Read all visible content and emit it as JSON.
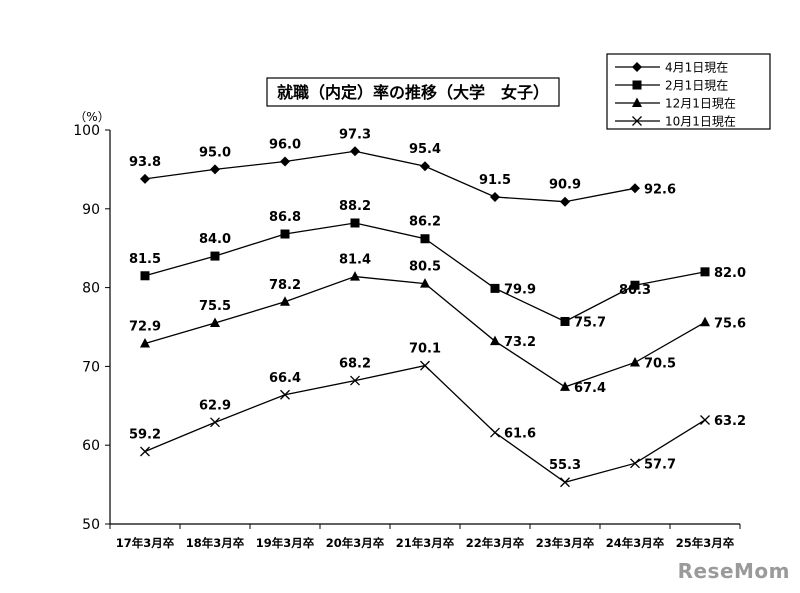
{
  "chart_data": {
    "type": "line",
    "title": "就職（内定）率の推移（大学　女子）",
    "ylabel": "（%）",
    "ylim": [
      50,
      100
    ],
    "yticks": [
      50,
      60,
      70,
      80,
      90,
      100
    ],
    "categories": [
      "17年3月卒",
      "18年3月卒",
      "19年3月卒",
      "20年3月卒",
      "21年3月卒",
      "22年3月卒",
      "23年3月卒",
      "24年3月卒",
      "25年3月卒"
    ],
    "grid": false,
    "legend_position": "top-right",
    "series": [
      {
        "name": "4月1日現在",
        "marker": "diamond",
        "values": [
          93.8,
          95.0,
          96.0,
          97.3,
          95.4,
          91.5,
          90.9,
          92.6,
          null
        ],
        "labels": [
          "93.8",
          "95.0",
          "96.0",
          "97.3",
          "95.4",
          "91.5",
          "90.9",
          "92.6",
          null
        ]
      },
      {
        "name": "2月1日現在",
        "marker": "square",
        "values": [
          81.5,
          84.0,
          86.8,
          88.2,
          86.2,
          79.9,
          75.7,
          80.3,
          82.0
        ],
        "labels": [
          "81.5",
          "84.0",
          "86.8",
          "88.2",
          "86.2",
          "79.9",
          "75.7",
          "80.3",
          "82.0"
        ]
      },
      {
        "name": "12月1日現在",
        "marker": "triangle",
        "values": [
          72.9,
          75.5,
          78.2,
          81.4,
          80.5,
          73.2,
          67.4,
          70.5,
          75.6
        ],
        "labels": [
          "72.9",
          "75.5",
          "78.2",
          "81.4",
          "80.5",
          "73.2",
          "67.4",
          "70.5",
          "75.6"
        ]
      },
      {
        "name": "10月1日現在",
        "marker": "cross",
        "values": [
          59.2,
          62.9,
          66.4,
          68.2,
          70.1,
          61.6,
          55.3,
          57.7,
          63.2
        ],
        "labels": [
          "59.2",
          "62.9",
          "66.4",
          "68.2",
          "70.1",
          "61.6",
          "55.3",
          "57.7",
          "63.2"
        ]
      }
    ]
  },
  "watermark": {
    "text": "ReseMom"
  }
}
